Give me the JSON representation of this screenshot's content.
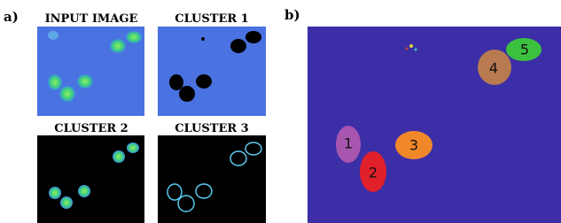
{
  "panel_a": {
    "label": "a)",
    "images": [
      {
        "title": "INPUT IMAGE"
      },
      {
        "title": "CLUSTER 1"
      },
      {
        "title": "CLUSTER 2"
      },
      {
        "title": "CLUSTER 3"
      }
    ]
  },
  "panel_b": {
    "label": "b)",
    "segments": [
      {
        "label": "1"
      },
      {
        "label": "2"
      },
      {
        "label": "3"
      },
      {
        "label": "4"
      },
      {
        "label": "5"
      }
    ]
  }
}
